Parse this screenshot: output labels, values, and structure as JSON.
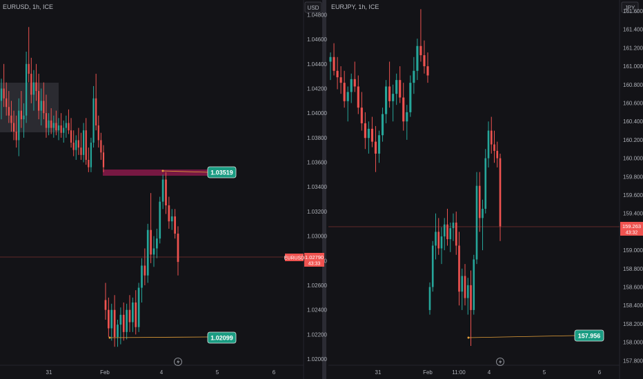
{
  "charts": {
    "left": {
      "symbol": "EURUSD, 1h, ICE",
      "currency_button": "USD",
      "price_ticks": [
        "1.04800",
        "1.04600",
        "1.04400",
        "1.04200",
        "1.04000",
        "1.03800",
        "1.03600",
        "1.03400",
        "1.03200",
        "1.03000",
        "1.02800",
        "1.02600",
        "1.02400",
        "1.02200",
        "1.02000"
      ],
      "time_ticks": [
        "31",
        "Feb",
        "4",
        "5",
        "6"
      ],
      "last_price": {
        "symbol": "EURUSD",
        "price": "1.02790",
        "countdown": "43:33"
      },
      "annotations": {
        "high": "1.03519",
        "low": "1.02099"
      }
    },
    "right": {
      "symbol": "EURJPY, 1h, ICE",
      "currency_button": "JPY",
      "price_ticks": [
        "161.600",
        "161.400",
        "161.200",
        "161.000",
        "160.800",
        "160.600",
        "160.400",
        "160.200",
        "160.000",
        "159.800",
        "159.600",
        "159.400",
        "159.200",
        "159.000",
        "158.800",
        "158.600",
        "158.400",
        "158.200",
        "158.000",
        "157.800"
      ],
      "time_ticks": [
        "31",
        "Feb",
        "11:00",
        "4",
        "5",
        "6"
      ],
      "last_price": {
        "price": "159.263",
        "countdown": "43:32"
      },
      "annotations": {
        "low": "157.956"
      }
    }
  },
  "chart_data": [
    {
      "type": "candlestick",
      "title": "EURUSD, 1h, ICE",
      "ylim": [
        1.0195,
        1.0492
      ],
      "x_tick_labels": [
        "31",
        "Feb",
        "4",
        "5",
        "6"
      ],
      "colors": {
        "up": "#26a69a",
        "down": "#ef5350"
      },
      "candles": [
        [
          1.041,
          1.0428,
          1.0395,
          1.042
        ],
        [
          1.042,
          1.044,
          1.0405,
          1.0412
        ],
        [
          1.0412,
          1.0425,
          1.0398,
          1.0405
        ],
        [
          1.0405,
          1.0418,
          1.0392,
          1.0398
        ],
        [
          1.0398,
          1.041,
          1.0385,
          1.0392
        ],
        [
          1.0392,
          1.0402,
          1.0378,
          1.0385
        ],
        [
          1.0385,
          1.0398,
          1.0372,
          1.0378
        ],
        [
          1.0378,
          1.0412,
          1.0365,
          1.0402
        ],
        [
          1.0402,
          1.0418,
          1.0388,
          1.0395
        ],
        [
          1.0395,
          1.0408,
          1.038,
          1.0398
        ],
        [
          1.0398,
          1.045,
          1.0392,
          1.044
        ],
        [
          1.044,
          1.047,
          1.0425,
          1.0432
        ],
        [
          1.0432,
          1.0445,
          1.0408,
          1.0415
        ],
        [
          1.0415,
          1.0435,
          1.0402,
          1.0425
        ],
        [
          1.0425,
          1.044,
          1.041,
          1.0418
        ],
        [
          1.0418,
          1.0432,
          1.0395,
          1.0402
        ],
        [
          1.0402,
          1.042,
          1.039,
          1.041
        ],
        [
          1.041,
          1.0425,
          1.0395,
          1.04
        ],
        [
          1.04,
          1.0415,
          1.038,
          1.0388
        ],
        [
          1.0388,
          1.04,
          1.0382,
          1.0394
        ],
        [
          1.0394,
          1.0404,
          1.0383,
          1.0388
        ],
        [
          1.0388,
          1.0398,
          1.038,
          1.0392
        ],
        [
          1.0392,
          1.0402,
          1.0382,
          1.0386
        ],
        [
          1.0386,
          1.0396,
          1.0378,
          1.039
        ],
        [
          1.039,
          1.04,
          1.038,
          1.0384
        ],
        [
          1.0384,
          1.0394,
          1.0376,
          1.0388
        ],
        [
          1.0388,
          1.0398,
          1.038,
          1.0392
        ],
        [
          1.0392,
          1.0403,
          1.0383,
          1.0386
        ],
        [
          1.0386,
          1.0396,
          1.0372,
          1.0376
        ],
        [
          1.0376,
          1.0386,
          1.0365,
          1.037
        ],
        [
          1.037,
          1.0382,
          1.0362,
          1.0378
        ],
        [
          1.0378,
          1.0388,
          1.0366,
          1.0372
        ],
        [
          1.0372,
          1.0384,
          1.0362,
          1.0366
        ],
        [
          1.0366,
          1.0392,
          1.036,
          1.0386
        ],
        [
          1.0386,
          1.0396,
          1.0358,
          1.0362
        ],
        [
          1.0362,
          1.0372,
          1.0352,
          1.0356
        ],
        [
          1.0356,
          1.038,
          1.0352,
          1.0376
        ],
        [
          1.0376,
          1.0422,
          1.0372,
          1.0412
        ],
        [
          1.0412,
          1.0432,
          1.0386,
          1.039
        ],
        [
          1.039,
          1.0398,
          1.0372,
          1.0378
        ],
        [
          1.0378,
          1.0384,
          1.0362,
          1.0368
        ],
        [
          1.0368,
          1.0374,
          1.0352,
          1.0356
        ],
        [
          1.0248,
          1.0262,
          1.0232,
          1.024
        ],
        [
          1.024,
          1.025,
          1.0218,
          1.0225
        ],
        [
          1.0225,
          1.0245,
          1.0215,
          1.024
        ],
        [
          1.024,
          1.0252,
          1.021,
          1.0218
        ],
        [
          1.0218,
          1.0232,
          1.021,
          1.0228
        ],
        [
          1.0228,
          1.0242,
          1.0212,
          1.0236
        ],
        [
          1.0236,
          1.0246,
          1.0215,
          1.0222
        ],
        [
          1.0222,
          1.0245,
          1.0216,
          1.024
        ],
        [
          1.024,
          1.0252,
          1.0222,
          1.023
        ],
        [
          1.023,
          1.025,
          1.0222,
          1.0246
        ],
        [
          1.0246,
          1.0256,
          1.022,
          1.0226
        ],
        [
          1.0226,
          1.0262,
          1.0222,
          1.0258
        ],
        [
          1.0258,
          1.0282,
          1.0246,
          1.0276
        ],
        [
          1.0276,
          1.029,
          1.026,
          1.0268
        ],
        [
          1.0268,
          1.031,
          1.0262,
          1.0305
        ],
        [
          1.0305,
          1.0335,
          1.0278,
          1.0285
        ],
        [
          1.0285,
          1.03,
          1.0275,
          1.029
        ],
        [
          1.029,
          1.0306,
          1.0282,
          1.0298
        ],
        [
          1.0298,
          1.0332,
          1.0294,
          1.0328
        ],
        [
          1.0328,
          1.035,
          1.0322,
          1.0346
        ],
        [
          1.0346,
          1.0352,
          1.0318,
          1.0325
        ],
        [
          1.0325,
          1.0332,
          1.0306,
          1.0312
        ],
        [
          1.0312,
          1.0322,
          1.0305,
          1.0316
        ],
        [
          1.0316,
          1.0322,
          1.0298,
          1.0302
        ],
        [
          1.0302,
          1.0308,
          1.0268,
          1.0279
        ]
      ]
    },
    {
      "type": "candlestick",
      "title": "EURJPY, 1h, ICE",
      "ylim": [
        157.75,
        161.72
      ],
      "x_tick_labels": [
        "31",
        "Feb",
        "11:00",
        "4",
        "5",
        "6"
      ],
      "colors": {
        "up": "#26a69a",
        "down": "#ef5350"
      },
      "candles": [
        [
          161.05,
          161.15,
          160.85,
          161.1
        ],
        [
          161.1,
          161.25,
          160.9,
          160.95
        ],
        [
          160.95,
          161.1,
          160.75,
          160.88
        ],
        [
          160.88,
          161.0,
          160.7,
          160.82
        ],
        [
          160.82,
          160.95,
          160.55,
          160.62
        ],
        [
          160.62,
          160.78,
          160.4,
          160.72
        ],
        [
          160.72,
          160.92,
          160.6,
          160.86
        ],
        [
          160.86,
          161.05,
          160.72,
          160.78
        ],
        [
          160.78,
          160.9,
          160.48,
          160.55
        ],
        [
          160.55,
          160.72,
          160.3,
          160.38
        ],
        [
          160.38,
          160.5,
          160.1,
          160.22
        ],
        [
          160.22,
          160.4,
          160.05,
          160.32
        ],
        [
          160.32,
          160.45,
          160.12,
          160.18
        ],
        [
          160.18,
          160.35,
          159.85,
          160.05
        ],
        [
          160.05,
          160.3,
          159.95,
          160.25
        ],
        [
          160.25,
          160.55,
          160.18,
          160.48
        ],
        [
          160.48,
          160.85,
          160.38,
          160.78
        ],
        [
          160.78,
          161.05,
          160.55,
          160.62
        ],
        [
          160.62,
          160.8,
          160.4,
          160.7
        ],
        [
          160.7,
          160.92,
          160.58,
          160.85
        ],
        [
          160.85,
          161.0,
          160.6,
          160.66
        ],
        [
          160.66,
          160.82,
          160.3,
          160.4
        ],
        [
          160.4,
          160.58,
          160.2,
          160.5
        ],
        [
          160.5,
          160.9,
          160.45,
          160.82
        ],
        [
          160.82,
          161.1,
          160.7,
          160.95
        ],
        [
          160.95,
          161.3,
          160.85,
          161.22
        ],
        [
          161.22,
          161.62,
          161.05,
          161.12
        ],
        [
          161.12,
          161.28,
          160.92,
          161.0
        ],
        [
          161.0,
          161.15,
          160.82,
          160.9
        ],
        [
          158.35,
          158.65,
          158.3,
          158.6
        ],
        [
          158.6,
          159.1,
          158.55,
          159.05
        ],
        [
          159.05,
          159.4,
          158.9,
          159.2
        ],
        [
          159.2,
          159.35,
          158.95,
          159.02
        ],
        [
          159.02,
          159.25,
          158.85,
          159.15
        ],
        [
          159.15,
          159.35,
          159.0,
          159.28
        ],
        [
          159.28,
          159.45,
          159.05,
          159.12
        ],
        [
          159.12,
          159.3,
          158.98,
          159.24
        ],
        [
          159.24,
          159.4,
          159.1,
          159.3
        ],
        [
          159.3,
          159.42,
          158.95,
          159.05
        ],
        [
          159.05,
          159.2,
          158.4,
          158.55
        ],
        [
          158.55,
          158.8,
          158.35,
          158.72
        ],
        [
          158.72,
          158.85,
          158.4,
          158.48
        ],
        [
          158.48,
          158.7,
          158.3,
          158.62
        ],
        [
          158.62,
          158.78,
          157.96,
          158.35
        ],
        [
          158.35,
          158.95,
          158.3,
          158.9
        ],
        [
          158.9,
          159.85,
          158.85,
          159.7
        ],
        [
          159.7,
          159.85,
          159.2,
          159.35
        ],
        [
          159.35,
          159.55,
          159.0,
          159.45
        ],
        [
          159.45,
          160.1,
          159.4,
          160.0
        ],
        [
          160.0,
          160.4,
          159.9,
          160.3
        ],
        [
          160.3,
          160.45,
          160.05,
          160.15
        ],
        [
          160.15,
          160.3,
          159.95,
          160.08
        ],
        [
          160.08,
          160.18,
          159.9,
          160.0
        ],
        [
          160.0,
          160.05,
          159.1,
          159.26
        ]
      ]
    }
  ]
}
